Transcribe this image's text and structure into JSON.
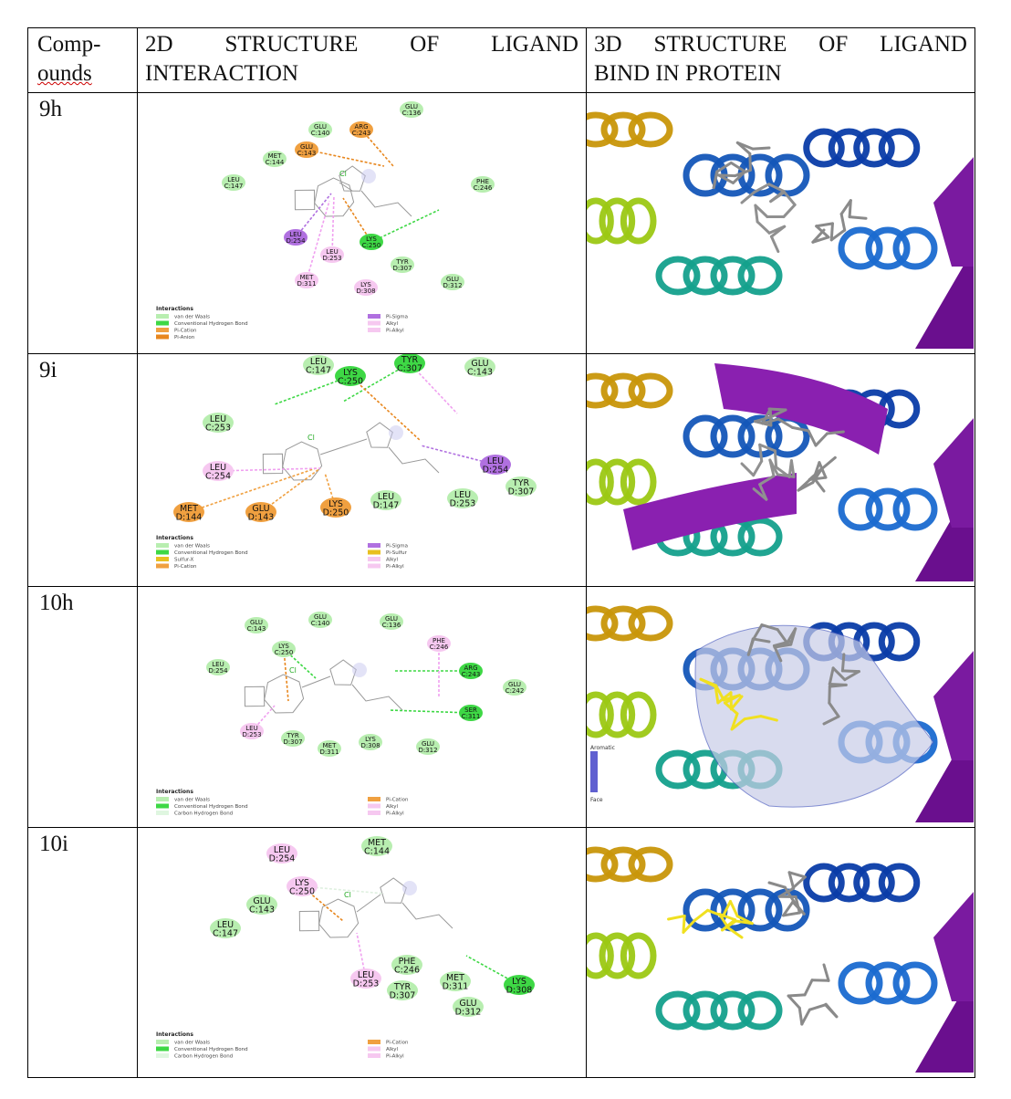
{
  "header": {
    "col1_line1": "Comp-",
    "col1_line2": "ounds",
    "col2_line1": "2D STRUCTURE OF LIGAND",
    "col2_line2": "INTERACTION",
    "col3_line1": "3D STRUCTURE OF LIGAND",
    "col3_line2": "BIND IN PROTEIN"
  },
  "rows": [
    {
      "compound": "9h",
      "legend_title": "Interactions",
      "legend_left": [
        "van der Waals",
        "Conventional Hydrogen Bond",
        "Pi-Cation",
        "Pi-Anion"
      ],
      "legend_right": [
        "Pi-Sigma",
        "Alkyl",
        "Pi-Alkyl"
      ],
      "residues": [
        {
          "n": "GLU",
          "c": "C:136"
        },
        {
          "n": "GLU",
          "c": "C:140"
        },
        {
          "n": "ARG",
          "c": "C:243"
        },
        {
          "n": "GLU",
          "c": "C:143"
        },
        {
          "n": "MET",
          "c": "C:144"
        },
        {
          "n": "LEU",
          "c": "C:147"
        },
        {
          "n": "PHE",
          "c": "C:246"
        },
        {
          "n": "LEU",
          "c": "D:254"
        },
        {
          "n": "LYS",
          "c": "C:250"
        },
        {
          "n": "LEU",
          "c": "D:253"
        },
        {
          "n": "TYR",
          "c": "D:307"
        },
        {
          "n": "MET",
          "c": "D:311"
        },
        {
          "n": "LYS",
          "c": "D:308"
        },
        {
          "n": "GLU",
          "c": "D:312"
        }
      ]
    },
    {
      "compound": "9i",
      "legend_title": "Interactions",
      "legend_left": [
        "van der Waals",
        "Conventional Hydrogen Bond",
        "Sulfur-X",
        "Pi-Cation"
      ],
      "legend_right": [
        "Pi-Sigma",
        "Pi-Sulfur",
        "Alkyl",
        "Pi-Alkyl"
      ],
      "residues": [
        {
          "n": "LEU",
          "c": "C:147"
        },
        {
          "n": "LYS",
          "c": "C:250"
        },
        {
          "n": "TYR",
          "c": "C:307"
        },
        {
          "n": "GLU",
          "c": "C:143"
        },
        {
          "n": "LEU",
          "c": "C:253"
        },
        {
          "n": "LEU",
          "c": "D:254"
        },
        {
          "n": "LEU",
          "c": "C:254"
        },
        {
          "n": "TYR",
          "c": "D:307"
        },
        {
          "n": "MET",
          "c": "D:144"
        },
        {
          "n": "GLU",
          "c": "D:143"
        },
        {
          "n": "LYS",
          "c": "D:250"
        },
        {
          "n": "LEU",
          "c": "D:147"
        },
        {
          "n": "LEU",
          "c": "D:253"
        }
      ]
    },
    {
      "compound": "10h",
      "legend_title": "Interactions",
      "legend_left": [
        "van der Waals",
        "Conventional Hydrogen Bond",
        "Carbon Hydrogen Bond"
      ],
      "legend_right": [
        "Pi-Cation",
        "Alkyl",
        "Pi-Alkyl"
      ],
      "residues": [
        {
          "n": "GLU",
          "c": "C:143"
        },
        {
          "n": "GLU",
          "c": "C:140"
        },
        {
          "n": "GLU",
          "c": "C:136"
        },
        {
          "n": "LYS",
          "c": "C:250"
        },
        {
          "n": "PHE",
          "c": "C:246"
        },
        {
          "n": "LEU",
          "c": "D:254"
        },
        {
          "n": "ARG",
          "c": "C:243"
        },
        {
          "n": "GLU",
          "c": "C:242"
        },
        {
          "n": "SER",
          "c": "C:311"
        },
        {
          "n": "LEU",
          "c": "D:253"
        },
        {
          "n": "TYR",
          "c": "D:307"
        },
        {
          "n": "MET",
          "c": "D:311"
        },
        {
          "n": "LYS",
          "c": "D:308"
        },
        {
          "n": "GLU",
          "c": "D:312"
        }
      ],
      "surface_legend_top": "Aromatic",
      "surface_legend_bottom": "Face"
    },
    {
      "compound": "10i",
      "legend_title": "Interactions",
      "legend_left": [
        "van der Waals",
        "Conventional Hydrogen Bond",
        "Carbon Hydrogen Bond"
      ],
      "legend_right": [
        "Pi-Cation",
        "Alkyl",
        "Pi-Alkyl"
      ],
      "residues": [
        {
          "n": "LEU",
          "c": "D:254"
        },
        {
          "n": "MET",
          "c": "C:144"
        },
        {
          "n": "LYS",
          "c": "C:250"
        },
        {
          "n": "GLU",
          "c": "C:143"
        },
        {
          "n": "LEU",
          "c": "C:147"
        },
        {
          "n": "PHE",
          "c": "C:246"
        },
        {
          "n": "LEU",
          "c": "D:253"
        },
        {
          "n": "MET",
          "c": "D:311"
        },
        {
          "n": "LYS",
          "c": "D:308"
        },
        {
          "n": "TYR",
          "c": "D:307"
        },
        {
          "n": "GLU",
          "c": "D:312"
        }
      ]
    }
  ],
  "colors": {
    "vdw": "#b8eeb0",
    "hbond": "#3ed845",
    "cation": "#f0a040",
    "anion": "#e8871e",
    "sigma": "#b070e0",
    "alkyl": "#f6c8f0",
    "sulfur": "#e8c020",
    "chbond": "#dff6e0",
    "helix_purple": "#6a0f8e",
    "helix_blue": "#1456b8",
    "helix_teal": "#14a08c",
    "helix_gold": "#c8960a",
    "helix_lime": "#9cc814",
    "ligand_yellow": "#f0e020"
  }
}
